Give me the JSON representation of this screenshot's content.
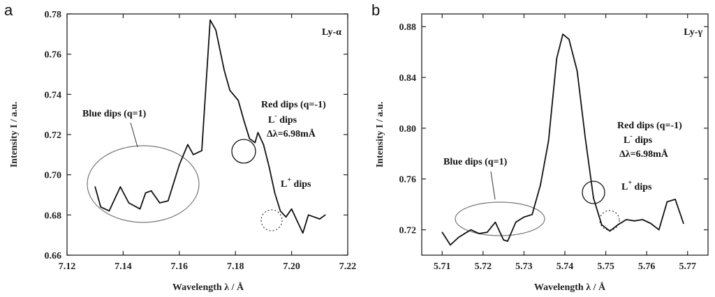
{
  "chart_data": [
    {
      "type": "line",
      "panel_label": "a",
      "line_label": "Ly-α",
      "xlabel": "Wavelength  λ / Å",
      "ylabel": "Intensity I / a.u.",
      "xlim": [
        7.12,
        7.22
      ],
      "ylim": [
        0.66,
        0.78
      ],
      "xticks": [
        "7.12",
        "7.14",
        "7.16",
        "7.18",
        "7.20",
        "7.22"
      ],
      "yticks": [
        "0.66",
        "0.68",
        "0.70",
        "0.72",
        "0.74",
        "0.76",
        "0.78"
      ],
      "x": [
        7.13,
        7.132,
        7.135,
        7.139,
        7.142,
        7.146,
        7.148,
        7.15,
        7.153,
        7.156,
        7.158,
        7.16,
        7.163,
        7.165,
        7.168,
        7.171,
        7.173,
        7.176,
        7.178,
        7.181,
        7.183,
        7.185,
        7.187,
        7.188,
        7.19,
        7.192,
        7.194,
        7.196,
        7.198,
        7.2,
        7.202,
        7.204,
        7.206,
        7.208,
        7.21,
        7.212
      ],
      "y": [
        0.694,
        0.684,
        0.682,
        0.694,
        0.686,
        0.683,
        0.691,
        0.692,
        0.686,
        0.687,
        0.696,
        0.705,
        0.715,
        0.71,
        0.712,
        0.777,
        0.772,
        0.752,
        0.742,
        0.737,
        0.727,
        0.718,
        0.716,
        0.721,
        0.715,
        0.704,
        0.691,
        0.682,
        0.679,
        0.683,
        0.677,
        0.671,
        0.68,
        0.679,
        0.678,
        0.68
      ],
      "annotations": {
        "blue": "Blue dips (q=1)",
        "red": "Red dips (q=-1)",
        "lminus": "L",
        "lminus_sup": "-",
        "lminus_rest": " dips",
        "delta": "Δλ=6.98mÅ",
        "lplus": "L",
        "lplus_sup": "+",
        "lplus_rest": "  dips"
      }
    },
    {
      "type": "line",
      "panel_label": "b",
      "line_label": "Ly-γ",
      "xlabel": "Wavelength  λ / Å",
      "ylabel": "Intensity I / a.u.",
      "xlim": [
        5.705,
        5.775
      ],
      "ylim": [
        0.7,
        0.89
      ],
      "xticks": [
        "5.71",
        "5.72",
        "5.73",
        "5.74",
        "5.75",
        "5.76",
        "5.77"
      ],
      "yticks": [
        "0.72",
        "0.76",
        "0.80",
        "0.84",
        "0.88"
      ],
      "x": [
        5.71,
        5.712,
        5.714,
        5.716,
        5.717,
        5.719,
        5.721,
        5.723,
        5.725,
        5.726,
        5.728,
        5.73,
        5.732,
        5.734,
        5.736,
        5.738,
        5.7395,
        5.741,
        5.743,
        5.745,
        5.747,
        5.749,
        5.751,
        5.753,
        5.755,
        5.757,
        5.759,
        5.761,
        5.763,
        5.765,
        5.767,
        5.769
      ],
      "y": [
        0.718,
        0.708,
        0.714,
        0.718,
        0.72,
        0.717,
        0.718,
        0.726,
        0.712,
        0.711,
        0.726,
        0.73,
        0.732,
        0.755,
        0.79,
        0.855,
        0.874,
        0.87,
        0.845,
        0.792,
        0.745,
        0.724,
        0.719,
        0.724,
        0.728,
        0.727,
        0.728,
        0.725,
        0.72,
        0.742,
        0.744,
        0.725
      ],
      "annotations": {
        "blue": "Blue dips (q=1)",
        "red": "Red dips (q=-1)",
        "lminus": "L",
        "lminus_sup": "-",
        "lminus_rest": " dips",
        "delta": "Δλ=6.98mÅ",
        "lplus": "L",
        "lplus_sup": "+",
        "lplus_rest": "  dips"
      }
    }
  ]
}
